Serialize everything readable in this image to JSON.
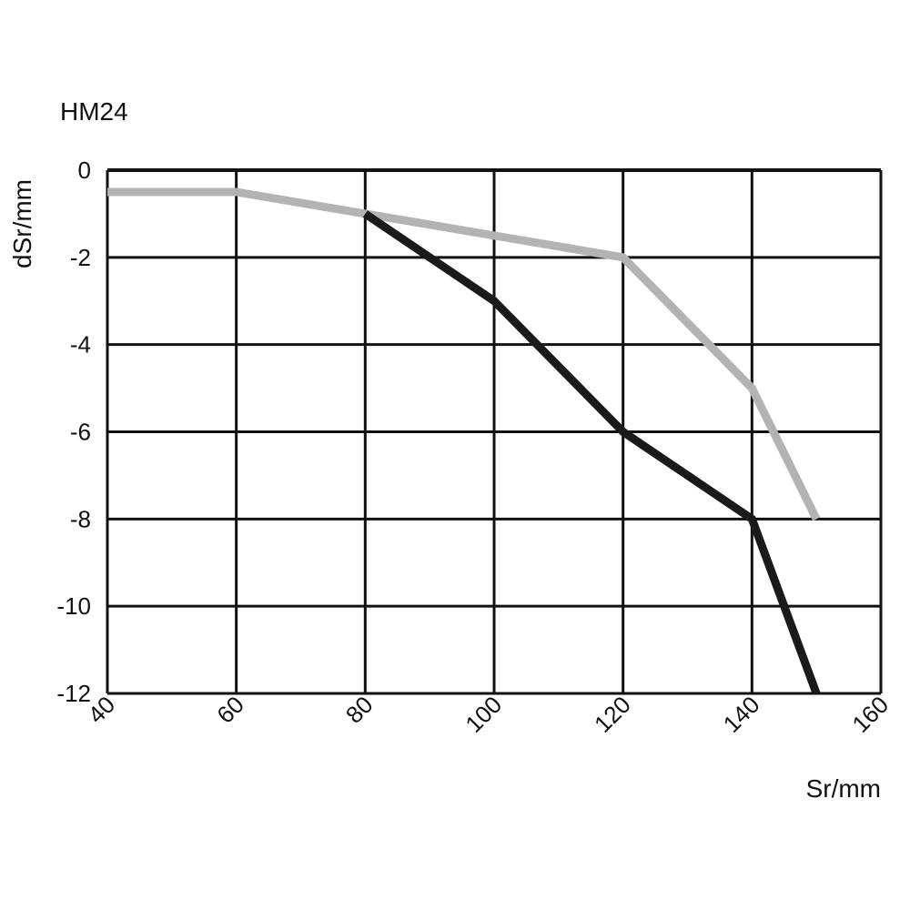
{
  "chart_data": {
    "type": "line",
    "title": "HM24",
    "xlabel": "Sr/mm",
    "ylabel": "dSr/mm",
    "xlim": [
      40,
      160
    ],
    "ylim": [
      -12,
      0
    ],
    "xticks": [
      "40",
      "60",
      "80",
      "100",
      "120",
      "140",
      "160"
    ],
    "yticks": [
      "0",
      "-2",
      "-4",
      "-6",
      "-8",
      "-10",
      "-12"
    ],
    "grid": true,
    "legend": "none",
    "series": [
      {
        "color": "#1a1a1a",
        "points": [
          [
            80,
            -1.0
          ],
          [
            100,
            -3.0
          ],
          [
            120,
            -6.0
          ],
          [
            140,
            -8.0
          ],
          [
            150,
            -12.0
          ]
        ]
      },
      {
        "color": "#b3b3b3",
        "points": [
          [
            40,
            -0.5
          ],
          [
            60,
            -0.5
          ],
          [
            80,
            -1.0
          ],
          [
            100,
            -1.5
          ],
          [
            120,
            -2.0
          ],
          [
            140,
            -5.0
          ],
          [
            150,
            -8.0
          ]
        ]
      }
    ]
  }
}
